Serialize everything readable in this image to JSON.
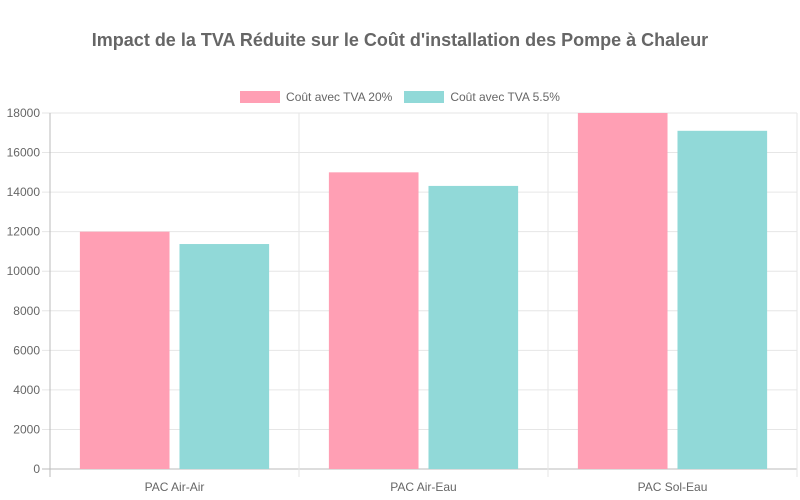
{
  "chart_data": {
    "type": "bar",
    "title": "Impact de la TVA Réduite sur le Coût d'installation des Pompe à Chaleur",
    "categories": [
      "PAC Air-Air",
      "PAC Air-Eau",
      "PAC Sol-Eau"
    ],
    "series": [
      {
        "name": "Coût avec TVA 20%",
        "values": [
          12000,
          15000,
          18000
        ],
        "color": "#ff9fb4"
      },
      {
        "name": "Coût avec TVA 5.5%",
        "values": [
          11375,
          14313,
          17100
        ],
        "color": "#91d9d8"
      }
    ],
    "ylim": [
      0,
      18000
    ],
    "yticks": [
      0,
      2000,
      4000,
      6000,
      8000,
      10000,
      12000,
      14000,
      16000,
      18000
    ],
    "grid": true,
    "legend_position": "top"
  }
}
